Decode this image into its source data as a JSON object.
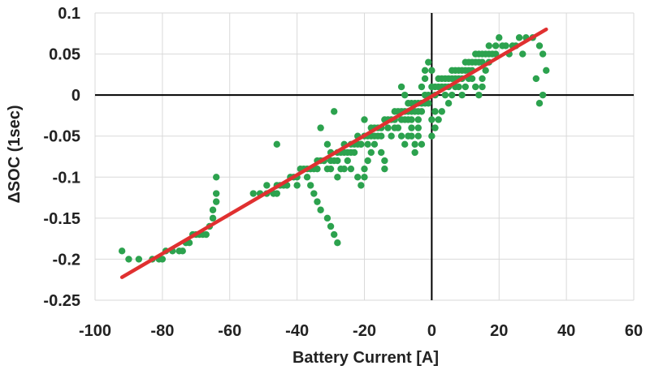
{
  "chart_data": {
    "type": "scatter",
    "title": "",
    "xlabel": "Battery Current [A]",
    "ylabel": "ΔSOC (1sec)",
    "xlim": [
      -100,
      60
    ],
    "ylim": [
      -0.25,
      0.1
    ],
    "x_ticks": [
      -100,
      -80,
      -60,
      -40,
      -20,
      0,
      20,
      40,
      60
    ],
    "x_tick_labels": [
      "-100",
      "-80",
      "-60",
      "-40",
      "-20",
      "0",
      "20",
      "40",
      "60"
    ],
    "y_ticks": [
      -0.25,
      -0.2,
      -0.15,
      -0.1,
      -0.05,
      0,
      0.05,
      0.1
    ],
    "y_tick_labels": [
      "-0.25",
      "-0.2",
      "-0.15",
      "-0.1",
      "-0.05",
      "0",
      "0.05",
      "0.1"
    ],
    "grid": true,
    "legend": "none",
    "colors": {
      "points": "#2ca24e",
      "fit_line": "#e03030",
      "axes_zero": "#000000",
      "grid": "#d9d9d9"
    },
    "series": [
      {
        "kind": "points",
        "points": [
          [
            -92,
            -0.19
          ],
          [
            -90,
            -0.2
          ],
          [
            -87,
            -0.2
          ],
          [
            -83,
            -0.2
          ],
          [
            -81,
            -0.2
          ],
          [
            -80,
            -0.2
          ],
          [
            -79,
            -0.19
          ],
          [
            -77,
            -0.19
          ],
          [
            -75,
            -0.19
          ],
          [
            -74,
            -0.19
          ],
          [
            -73,
            -0.18
          ],
          [
            -72,
            -0.18
          ],
          [
            -71,
            -0.17
          ],
          [
            -70,
            -0.17
          ],
          [
            -69,
            -0.17
          ],
          [
            -68,
            -0.17
          ],
          [
            -67,
            -0.17
          ],
          [
            -66,
            -0.16
          ],
          [
            -65,
            -0.15
          ],
          [
            -65,
            -0.14
          ],
          [
            -64,
            -0.13
          ],
          [
            -64,
            -0.12
          ],
          [
            -64,
            -0.1
          ],
          [
            -53,
            -0.12
          ],
          [
            -51,
            -0.12
          ],
          [
            -49,
            -0.12
          ],
          [
            -47,
            -0.12
          ],
          [
            -46,
            -0.11
          ],
          [
            -45,
            -0.11
          ],
          [
            -44,
            -0.11
          ],
          [
            -46,
            -0.06
          ],
          [
            -42,
            -0.1
          ],
          [
            -41,
            -0.1
          ],
          [
            -40,
            -0.1
          ],
          [
            -39,
            -0.09
          ],
          [
            -38,
            -0.09
          ],
          [
            -37,
            -0.09
          ],
          [
            -36,
            -0.09
          ],
          [
            -35,
            -0.09
          ],
          [
            -34,
            -0.08
          ],
          [
            -33,
            -0.08
          ],
          [
            -32,
            -0.08
          ],
          [
            -31,
            -0.09
          ],
          [
            -30,
            -0.09
          ],
          [
            -29,
            -0.08
          ],
          [
            -28,
            -0.08
          ],
          [
            -27,
            -0.07
          ],
          [
            -26,
            -0.07
          ],
          [
            -25,
            -0.07
          ],
          [
            -24,
            -0.07
          ],
          [
            -23,
            -0.06
          ],
          [
            -22,
            -0.06
          ],
          [
            -21,
            -0.06
          ],
          [
            -20,
            -0.05
          ],
          [
            -19,
            -0.05
          ],
          [
            -18,
            -0.05
          ],
          [
            -17,
            -0.04
          ],
          [
            -16,
            -0.04
          ],
          [
            -15,
            -0.04
          ],
          [
            -14,
            -0.03
          ],
          [
            -13,
            -0.03
          ],
          [
            -12,
            -0.03
          ],
          [
            -11,
            -0.02
          ],
          [
            -10,
            -0.02
          ],
          [
            -9,
            -0.02
          ],
          [
            -8,
            -0.02
          ],
          [
            -7,
            -0.02
          ],
          [
            -6,
            -0.01
          ],
          [
            -5,
            -0.01
          ],
          [
            -4,
            -0.01
          ],
          [
            -3,
            -0.01
          ],
          [
            -2,
            0.0
          ],
          [
            -1,
            0.0
          ],
          [
            1,
            0.0
          ],
          [
            2,
            0.01
          ],
          [
            3,
            0.01
          ],
          [
            4,
            0.01
          ],
          [
            5,
            0.01
          ],
          [
            6,
            0.02
          ],
          [
            7,
            0.02
          ],
          [
            8,
            0.02
          ],
          [
            9,
            0.02
          ],
          [
            10,
            0.03
          ],
          [
            11,
            0.03
          ],
          [
            12,
            0.03
          ],
          [
            13,
            0.04
          ],
          [
            14,
            0.04
          ],
          [
            15,
            0.04
          ],
          [
            16,
            0.05
          ],
          [
            17,
            0.05
          ],
          [
            18,
            0.05
          ],
          [
            19,
            0.06
          ],
          [
            20,
            0.07
          ],
          [
            22,
            0.06
          ],
          [
            24,
            0.06
          ],
          [
            26,
            0.07
          ],
          [
            28,
            0.07
          ],
          [
            30,
            0.07
          ],
          [
            32,
            0.06
          ],
          [
            33,
            0.05
          ],
          [
            34,
            0.03
          ],
          [
            31,
            0.02
          ],
          [
            32,
            -0.01
          ],
          [
            33,
            0.0
          ],
          [
            -36,
            -0.11
          ],
          [
            -35,
            -0.12
          ],
          [
            -34,
            -0.13
          ],
          [
            -33,
            -0.14
          ],
          [
            -31,
            -0.15
          ],
          [
            -30,
            -0.16
          ],
          [
            -29,
            -0.17
          ],
          [
            -28,
            -0.18
          ],
          [
            -29,
            -0.02
          ],
          [
            -33,
            -0.04
          ],
          [
            -31,
            -0.06
          ],
          [
            -30,
            -0.08
          ],
          [
            -28,
            -0.1
          ],
          [
            -26,
            -0.09
          ],
          [
            -24,
            -0.09
          ],
          [
            -22,
            -0.1
          ],
          [
            -21,
            -0.11
          ],
          [
            -20,
            -0.1
          ],
          [
            -20,
            -0.09
          ],
          [
            -19,
            -0.08
          ],
          [
            -18,
            -0.07
          ],
          [
            -17,
            -0.06
          ],
          [
            -15,
            -0.07
          ],
          [
            -14,
            -0.08
          ],
          [
            -14,
            -0.09
          ],
          [
            -12,
            -0.05
          ],
          [
            -11,
            -0.04
          ],
          [
            -10,
            -0.04
          ],
          [
            -9,
            -0.05
          ],
          [
            -8,
            -0.06
          ],
          [
            -7,
            -0.05
          ],
          [
            -6,
            -0.04
          ],
          [
            -5,
            -0.07
          ],
          [
            -5,
            -0.06
          ],
          [
            -4,
            -0.03
          ],
          [
            -4,
            -0.02
          ],
          [
            -3,
            -0.01
          ],
          [
            -3,
            0.01
          ],
          [
            -2,
            0.02
          ],
          [
            -2,
            0.03
          ],
          [
            -1,
            0.04
          ],
          [
            0,
            0.03
          ],
          [
            0,
            -0.03
          ],
          [
            0,
            -0.05
          ],
          [
            1,
            -0.02
          ],
          [
            1,
            -0.04
          ],
          [
            2,
            -0.03
          ],
          [
            3,
            -0.02
          ],
          [
            4,
            0.0
          ],
          [
            5,
            -0.01
          ],
          [
            6,
            0.0
          ],
          [
            7,
            0.01
          ],
          [
            8,
            0.01
          ],
          [
            9,
            0.0
          ],
          [
            10,
            0.01
          ],
          [
            11,
            0.02
          ],
          [
            12,
            0.02
          ],
          [
            13,
            0.01
          ],
          [
            14,
            0.0
          ],
          [
            15,
            0.01
          ],
          [
            15,
            0.02
          ],
          [
            16,
            0.03
          ],
          [
            17,
            0.04
          ],
          [
            -9,
            0.01
          ],
          [
            -8,
            0.0
          ],
          [
            -7,
            -0.01
          ],
          [
            -6,
            -0.03
          ],
          [
            -6,
            -0.05
          ],
          [
            -4,
            -0.05
          ],
          [
            -3,
            -0.06
          ],
          [
            -16,
            -0.05
          ],
          [
            -18,
            -0.04
          ],
          [
            -20,
            -0.03
          ],
          [
            -22,
            -0.05
          ],
          [
            -24,
            -0.06
          ],
          [
            -26,
            -0.06
          ],
          [
            -28,
            -0.07
          ],
          [
            -30,
            -0.07
          ],
          [
            -32,
            -0.08
          ],
          [
            -34,
            -0.09
          ],
          [
            -37,
            -0.1
          ],
          [
            -40,
            -0.11
          ],
          [
            -43,
            -0.11
          ],
          [
            -46,
            -0.12
          ],
          [
            -49,
            -0.11
          ],
          [
            -25,
            -0.08
          ],
          [
            -27,
            -0.09
          ],
          [
            -23,
            -0.07
          ],
          [
            -21,
            -0.06
          ],
          [
            -19,
            -0.06
          ],
          [
            -17,
            -0.05
          ],
          [
            -15,
            -0.05
          ],
          [
            -13,
            -0.04
          ],
          [
            -11,
            -0.03
          ],
          [
            -9,
            -0.03
          ],
          [
            -7,
            -0.03
          ],
          [
            -5,
            -0.02
          ],
          [
            -3,
            -0.02
          ],
          [
            -1,
            -0.01
          ],
          [
            1,
            0.01
          ],
          [
            3,
            0.02
          ],
          [
            5,
            0.02
          ],
          [
            7,
            0.03
          ],
          [
            9,
            0.03
          ],
          [
            11,
            0.04
          ],
          [
            13,
            0.05
          ],
          [
            15,
            0.05
          ],
          [
            17,
            0.06
          ],
          [
            19,
            0.05
          ],
          [
            21,
            0.06
          ],
          [
            23,
            0.05
          ],
          [
            25,
            0.06
          ],
          [
            27,
            0.05
          ],
          [
            12,
            0.04
          ],
          [
            14,
            0.05
          ],
          [
            10,
            0.04
          ],
          [
            8,
            0.03
          ],
          [
            6,
            0.03
          ],
          [
            4,
            0.02
          ],
          [
            2,
            0.02
          ],
          [
            0,
            0.01
          ],
          [
            -2,
            -0.01
          ],
          [
            -4,
            -0.04
          ],
          [
            -6,
            -0.02
          ],
          [
            -8,
            -0.03
          ]
        ]
      },
      {
        "kind": "fit_line",
        "points": [
          [
            -92,
            -0.222
          ],
          [
            34,
            0.08
          ]
        ]
      }
    ]
  }
}
